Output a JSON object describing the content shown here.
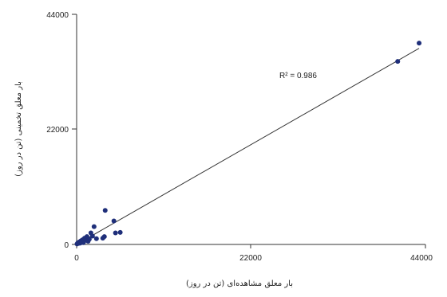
{
  "chart_data": {
    "type": "scatter",
    "xlabel": "بار معلق مشاهده‌ای (تن در روز)",
    "ylabel": "بار معلق تخمینی (تن در روز)",
    "xlim": [
      0,
      44000
    ],
    "ylim": [
      0,
      44000
    ],
    "x_ticks": [
      "0",
      "22000",
      "44000"
    ],
    "y_ticks": [
      "0",
      "22000",
      "44000"
    ],
    "annotation": "R² = 0.986",
    "grid": false,
    "marker_color": "#1f2f7a",
    "line_color": "#333333",
    "series": [
      {
        "points": [
          {
            "x": 50,
            "y": 100
          },
          {
            "x": 150,
            "y": 300
          },
          {
            "x": 250,
            "y": 200
          },
          {
            "x": 350,
            "y": 500
          },
          {
            "x": 450,
            "y": 250
          },
          {
            "x": 550,
            "y": 700
          },
          {
            "x": 650,
            "y": 400
          },
          {
            "x": 750,
            "y": 900
          },
          {
            "x": 850,
            "y": 350
          },
          {
            "x": 1000,
            "y": 1200
          },
          {
            "x": 1150,
            "y": 800
          },
          {
            "x": 1300,
            "y": 1500
          },
          {
            "x": 1450,
            "y": 600
          },
          {
            "x": 1600,
            "y": 1000
          },
          {
            "x": 1800,
            "y": 2200
          },
          {
            "x": 2000,
            "y": 1600
          },
          {
            "x": 2200,
            "y": 3400
          },
          {
            "x": 2500,
            "y": 1100
          },
          {
            "x": 3300,
            "y": 1200
          },
          {
            "x": 3500,
            "y": 1500
          },
          {
            "x": 3600,
            "y": 6500
          },
          {
            "x": 4700,
            "y": 4500
          },
          {
            "x": 4900,
            "y": 2200
          },
          {
            "x": 5500,
            "y": 2300
          },
          {
            "x": 40500,
            "y": 35000
          },
          {
            "x": 43200,
            "y": 38500
          }
        ]
      }
    ],
    "trendline": {
      "x": [
        0,
        43200
      ],
      "y": [
        0,
        37500
      ]
    }
  }
}
